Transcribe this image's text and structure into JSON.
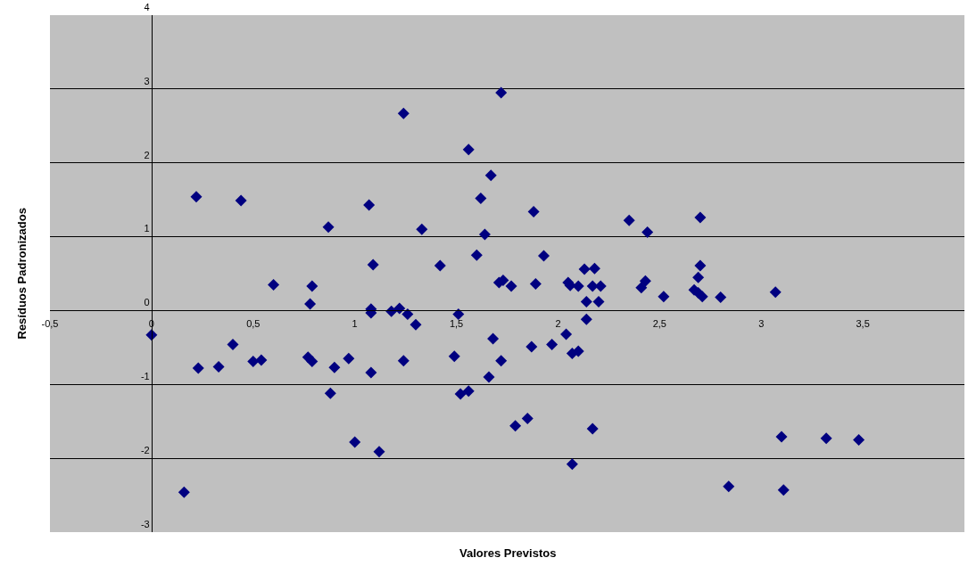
{
  "chart_data": {
    "type": "scatter",
    "xlabel": "Valores Previstos",
    "ylabel": "Resíduos Padronizados",
    "x": [
      0,
      0.16,
      0.22,
      0.23,
      0.33,
      0.4,
      0.44,
      0.5,
      0.54,
      0.6,
      0.77,
      0.78,
      0.79,
      0.79,
      0.87,
      0.88,
      0.9,
      0.97,
      1.0,
      1.07,
      1.08,
      1.08,
      1.08,
      1.09,
      1.12,
      1.18,
      1.22,
      1.24,
      1.24,
      1.26,
      1.3,
      1.33,
      1.42,
      1.49,
      1.51,
      1.52,
      1.56,
      1.56,
      1.6,
      1.62,
      1.64,
      1.66,
      1.67,
      1.68,
      1.71,
      1.72,
      1.72,
      1.73,
      1.77,
      1.79,
      1.85,
      1.87,
      1.88,
      1.89,
      1.93,
      1.97,
      2.04,
      2.05,
      2.06,
      2.07,
      2.07,
      2.1,
      2.1,
      2.13,
      2.14,
      2.14,
      2.17,
      2.17,
      2.18,
      2.2,
      2.21,
      2.35,
      2.41,
      2.43,
      2.44,
      2.52,
      2.67,
      2.69,
      2.69,
      2.7,
      2.7,
      2.71,
      2.8,
      2.84,
      3.07,
      3.1,
      3.11,
      3.32,
      3.48
    ],
    "series": [
      {
        "color": "#000080",
        "values": [
          -0.33,
          -2.46,
          1.54,
          -0.78,
          -0.76,
          -0.46,
          1.49,
          -0.69,
          -0.67,
          0.35,
          -0.63,
          0.09,
          0.33,
          -0.69,
          1.13,
          -1.12,
          -0.77,
          -0.65,
          -1.78,
          1.43,
          0.02,
          -0.03,
          -0.84,
          0.62,
          -1.91,
          -0.01,
          0.03,
          2.67,
          -0.68,
          -0.05,
          -0.19,
          1.1,
          0.61,
          -0.62,
          -0.05,
          -1.13,
          -1.09,
          2.18,
          0.75,
          1.52,
          1.03,
          -0.9,
          1.83,
          -0.38,
          0.38,
          2.95,
          -0.68,
          0.41,
          0.33,
          -1.56,
          -1.46,
          -0.49,
          1.34,
          0.36,
          0.74,
          -0.46,
          -0.32,
          0.38,
          0.34,
          -2.08,
          -0.58,
          0.33,
          -0.55,
          0.56,
          0.12,
          -0.12,
          0.33,
          -1.6,
          0.57,
          0.12,
          0.33,
          1.22,
          0.31,
          0.4,
          1.06,
          0.19,
          0.28,
          0.24,
          0.45,
          0.61,
          1.26,
          0.19,
          0.18,
          -2.38,
          0.25,
          -1.71,
          -2.43,
          -1.73,
          -1.75
        ]
      }
    ],
    "xlim": [
      -0.5,
      4
    ],
    "ylim": [
      -3,
      4
    ],
    "xticks": [
      {
        "value": -0.5,
        "label": "-0,5"
      },
      0,
      {
        "value": 0.5,
        "label": "0,5"
      },
      1,
      {
        "value": 1.5,
        "label": "1,5"
      },
      2,
      {
        "value": 2.5,
        "label": "2,5"
      },
      3,
      {
        "value": 3.5,
        "label": "3,5"
      }
    ],
    "yticks": [
      -3,
      -2,
      -1,
      0,
      1,
      2,
      3,
      4
    ],
    "grid": "y",
    "marker": "diamond"
  }
}
